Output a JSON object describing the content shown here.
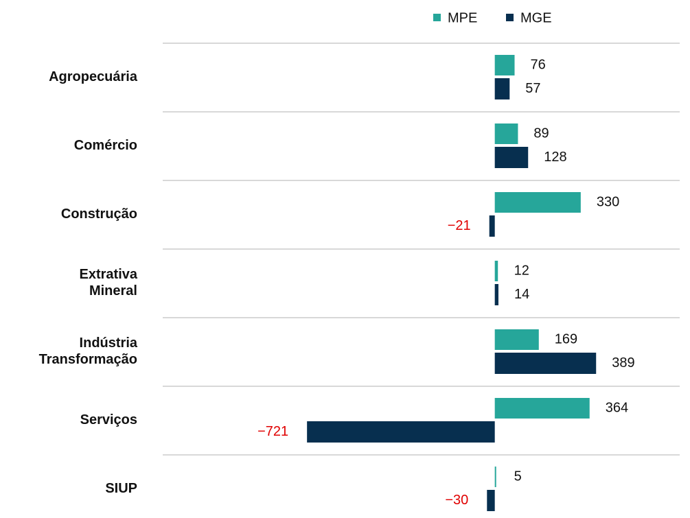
{
  "chart_data": {
    "type": "bar",
    "orientation": "horizontal",
    "categories": [
      "Agropecuária",
      "Comércio",
      "Construção",
      "Extrativa Mineral",
      "Indústria Transformação",
      "Serviços",
      "SIUP"
    ],
    "series": [
      {
        "name": "MPE",
        "color": "#26a69a",
        "values": [
          76,
          89,
          330,
          12,
          169,
          364,
          5
        ]
      },
      {
        "name": "MGE",
        "color": "#072f4f",
        "values": [
          57,
          128,
          -21,
          14,
          389,
          -721,
          -30
        ],
        "value_labels": [
          "57",
          "128",
          "−21",
          "14",
          "389",
          "−721",
          "−30"
        ]
      }
    ],
    "negative_label_color": "#e00000",
    "xlim": [
      -1275,
      710
    ],
    "legend": "top"
  }
}
